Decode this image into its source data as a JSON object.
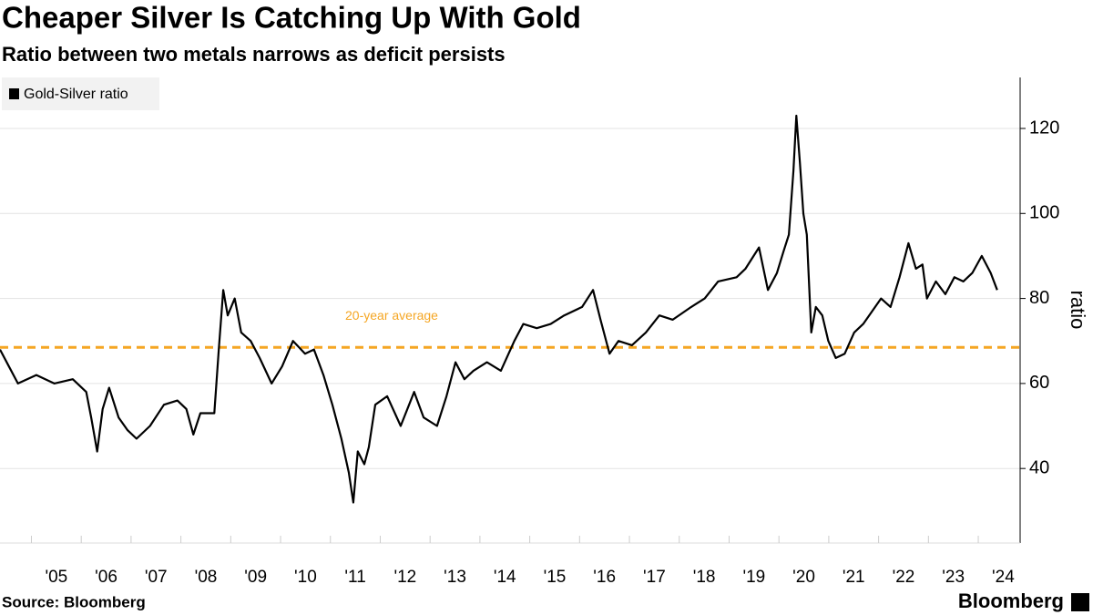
{
  "chart_data": {
    "type": "line",
    "title": "Cheaper Silver Is Catching Up With Gold",
    "subtitle": "Ratio between two metals narrows as deficit persists",
    "y_label": "ratio",
    "source": "Source: Bloomberg",
    "brand": "Bloomberg",
    "x": [
      2004.37,
      2004.55,
      2004.73,
      2005.1,
      2005.46,
      2005.83,
      2006.1,
      2006.2,
      2006.32,
      2006.43,
      2006.56,
      2006.75,
      2006.93,
      2007.11,
      2007.38,
      2007.66,
      2007.93,
      2008.11,
      2008.25,
      2008.39,
      2008.67,
      2008.76,
      2008.85,
      2008.94,
      2009.08,
      2009.21,
      2009.4,
      2009.58,
      2009.82,
      2010.03,
      2010.25,
      2010.49,
      2010.67,
      2010.86,
      2011.04,
      2011.22,
      2011.37,
      2011.46,
      2011.55,
      2011.68,
      2011.77,
      2011.9,
      2012.14,
      2012.41,
      2012.68,
      2012.87,
      2013.14,
      2013.33,
      2013.51,
      2013.69,
      2013.87,
      2014.14,
      2014.42,
      2014.69,
      2014.87,
      2015.14,
      2015.42,
      2015.69,
      2016.05,
      2016.27,
      2016.42,
      2016.6,
      2016.78,
      2017.05,
      2017.33,
      2017.6,
      2017.87,
      2018.24,
      2018.51,
      2018.78,
      2019.15,
      2019.33,
      2019.6,
      2019.78,
      2019.96,
      2020.09,
      2020.2,
      2020.29,
      2020.35,
      2020.42,
      2020.49,
      2020.56,
      2020.65,
      2020.74,
      2020.87,
      2020.99,
      2021.14,
      2021.32,
      2021.51,
      2021.69,
      2021.87,
      2022.05,
      2022.24,
      2022.42,
      2022.6,
      2022.75,
      2022.88,
      2022.97,
      2023.15,
      2023.34,
      2023.52,
      2023.7,
      2023.88,
      2024.07,
      2024.25,
      2024.38
    ],
    "series": [
      {
        "name": "Gold-Silver ratio",
        "color": "#000000",
        "values": [
          68,
          64,
          60,
          62,
          60,
          61,
          58,
          52,
          44,
          54,
          59,
          52,
          49,
          47,
          50,
          55,
          56,
          54,
          48,
          53,
          53,
          68,
          82,
          76,
          80,
          72,
          70,
          66,
          60,
          64,
          70,
          67,
          68,
          62,
          55,
          47,
          39,
          32,
          44,
          41,
          45,
          55,
          57,
          50,
          58,
          52,
          50,
          57,
          65,
          61,
          63,
          65,
          63,
          70,
          74,
          73,
          74,
          76,
          78,
          82,
          75,
          67,
          70,
          69,
          72,
          76,
          75,
          78,
          80,
          84,
          85,
          87,
          92,
          82,
          86,
          91,
          95,
          110,
          123,
          112,
          100,
          95,
          72,
          78,
          76,
          70,
          66,
          67,
          72,
          74,
          77,
          80,
          78,
          85,
          93,
          87,
          88,
          80,
          84,
          81,
          85,
          84,
          86,
          90,
          86,
          82
        ]
      }
    ],
    "hline": {
      "value": 68.5,
      "label": "20-year average",
      "color": "#f5a623"
    },
    "xlim": [
      2004.37,
      2024.84
    ],
    "xticks": [
      {
        "value": 2005,
        "label": "'05"
      },
      {
        "value": 2006,
        "label": "'06"
      },
      {
        "value": 2007,
        "label": "'07"
      },
      {
        "value": 2008,
        "label": "'08"
      },
      {
        "value": 2009,
        "label": "'09"
      },
      {
        "value": 2010,
        "label": "'10"
      },
      {
        "value": 2011,
        "label": "'11"
      },
      {
        "value": 2012,
        "label": "'12"
      },
      {
        "value": 2013,
        "label": "'13"
      },
      {
        "value": 2014,
        "label": "'14"
      },
      {
        "value": 2015,
        "label": "'15"
      },
      {
        "value": 2016,
        "label": "'16"
      },
      {
        "value": 2017,
        "label": "'17"
      },
      {
        "value": 2018,
        "label": "'18"
      },
      {
        "value": 2019,
        "label": "'19"
      },
      {
        "value": 2020,
        "label": "'20"
      },
      {
        "value": 2021,
        "label": "'21"
      },
      {
        "value": 2022,
        "label": "'22"
      },
      {
        "value": 2023,
        "label": "'23"
      },
      {
        "value": 2024,
        "label": "'24"
      }
    ],
    "ylim": [
      23,
      132
    ],
    "yticks": [
      40,
      60,
      80,
      100,
      120
    ],
    "grid": true,
    "legend": "top-left"
  }
}
